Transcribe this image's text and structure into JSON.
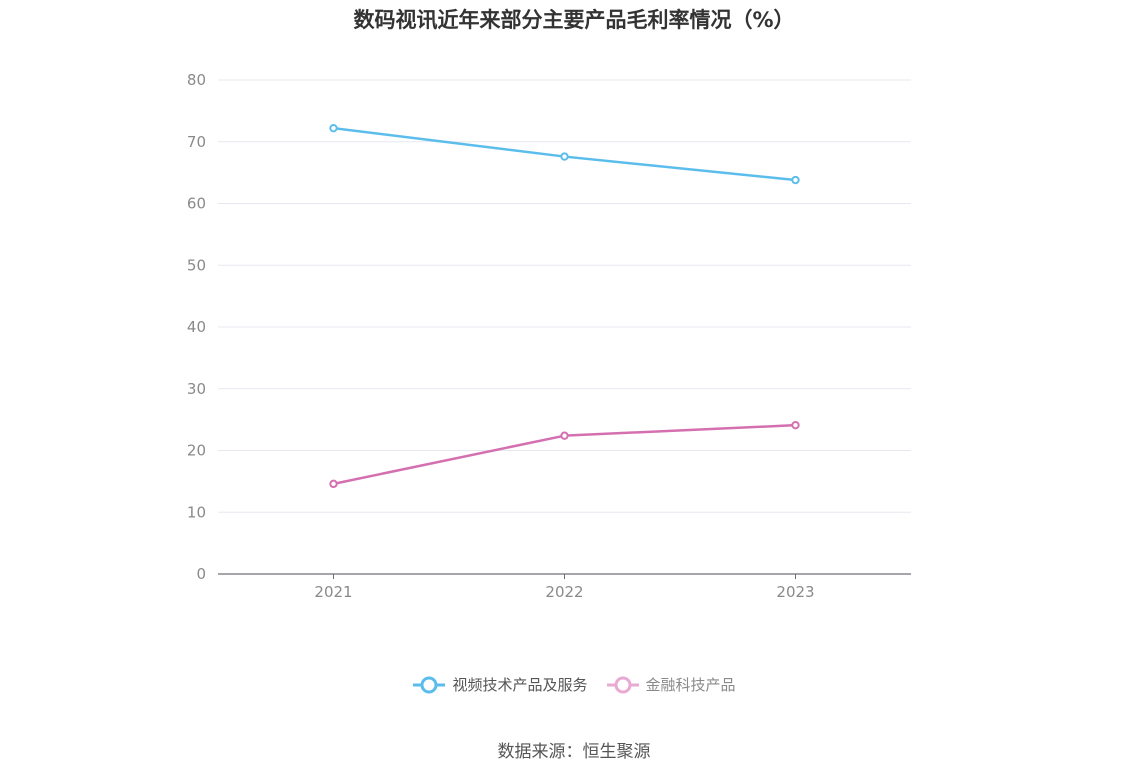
{
  "title": "数码视讯近年来部分主要产品毛利率情况（%）",
  "source": "数据来源：恒生聚源",
  "chart_data": {
    "type": "line",
    "title": "数码视讯近年来部分主要产品毛利率情况（%）",
    "categories": [
      "2021",
      "2022",
      "2023"
    ],
    "y_ticks": [
      "0",
      "10",
      "20",
      "30",
      "40",
      "50",
      "60",
      "70",
      "80"
    ],
    "ylim": [
      0,
      80
    ],
    "grid": true,
    "legend_position": "bottom",
    "series": [
      {
        "name": "视频技术产品及服务",
        "values": [
          72.2,
          67.6,
          63.8
        ],
        "color": "#5bbdec"
      },
      {
        "name": "金融科技产品",
        "values": [
          14.6,
          22.4,
          24.1
        ],
        "color": "#d46fb0",
        "legend_color": "#e8a9d2"
      }
    ]
  }
}
